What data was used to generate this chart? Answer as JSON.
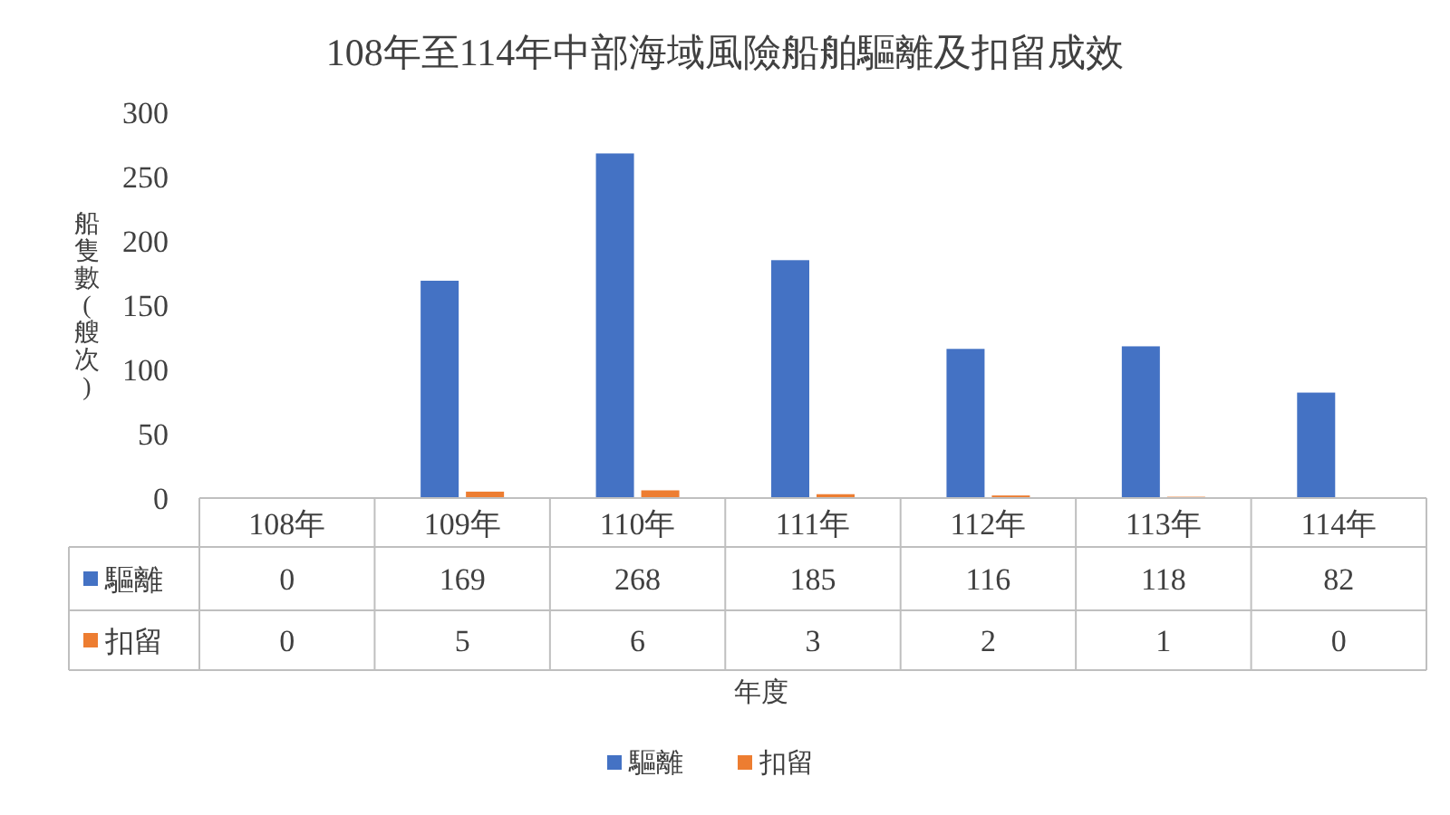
{
  "chart_data": {
    "type": "bar",
    "title": "108年至114年中部海域風險船舶驅離及扣留成效",
    "annotations": [
      "年度"
    ],
    "ylabel": "船隻數(艘次)",
    "categories": [
      "108年",
      "109年",
      "110年",
      "111年",
      "112年",
      "113年",
      "114年"
    ],
    "series": [
      {
        "name": "驅離",
        "color": "#4472c4",
        "values": [
          0,
          169,
          268,
          185,
          116,
          118,
          82
        ]
      },
      {
        "name": "扣留",
        "color": "#ed7d31",
        "values": [
          0,
          5,
          6,
          3,
          2,
          1,
          0
        ]
      }
    ],
    "ylim": [
      0,
      300
    ],
    "yticks": [
      0,
      50,
      100,
      150,
      200,
      250,
      300
    ],
    "data_labels": true,
    "legend": "bottom",
    "grid": false
  }
}
